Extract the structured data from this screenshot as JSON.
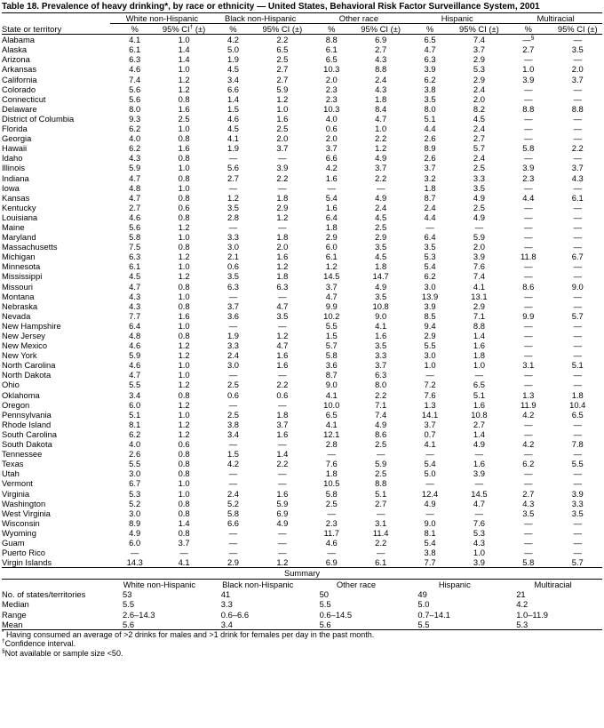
{
  "title": "Table 18. Prevalence of heavy drinking*, by race or ethnicity — United States, Behavioral Risk Factor Surveillance System, 2001",
  "header": {
    "row_label": "State or territory",
    "groups": [
      "White non-Hispanic",
      "Black non-Hispanic",
      "Other race",
      "Hispanic",
      "Multiracial"
    ],
    "sub": [
      "%",
      {
        "text": "95% CI",
        "sup": "†",
        "after": " (±)"
      },
      "%",
      "95% CI (±)",
      "%",
      "95% CI (±)",
      "%",
      "95% CI (±)",
      "%",
      "95% CI (±)"
    ]
  },
  "rows": [
    [
      "Alabama",
      "4.1",
      "1.0",
      "4.2",
      "2.2",
      "8.8",
      "6.9",
      "6.5",
      "7.4",
      {
        "text": "—",
        "sup": "§"
      },
      "—"
    ],
    [
      "Alaska",
      "6.1",
      "1.4",
      "5.0",
      "6.5",
      "6.1",
      "2.7",
      "4.7",
      "3.7",
      "2.7",
      "3.5"
    ],
    [
      "Arizona",
      "6.3",
      "1.4",
      "1.9",
      "2.5",
      "6.5",
      "4.3",
      "6.3",
      "2.9",
      "—",
      "—"
    ],
    [
      "Arkansas",
      "4.6",
      "1.0",
      "4.5",
      "2.7",
      "10.3",
      "8.8",
      "3.9",
      "5.3",
      "1.0",
      "2.0"
    ],
    [
      "California",
      "7.4",
      "1.2",
      "3.4",
      "2.7",
      "2.0",
      "2.4",
      "6.2",
      "2.9",
      "3.9",
      "3.7"
    ],
    [
      "Colorado",
      "5.6",
      "1.2",
      "6.6",
      "5.9",
      "2.3",
      "4.3",
      "3.8",
      "2.4",
      "—",
      "—"
    ],
    [
      "Connecticut",
      "5.6",
      "0.8",
      "1.4",
      "1.2",
      "2.3",
      "1.8",
      "3.5",
      "2.0",
      "—",
      "—"
    ],
    [
      "Delaware",
      "8.0",
      "1.6",
      "1.5",
      "1.0",
      "10.3",
      "8.4",
      "8.0",
      "8.2",
      "8.8",
      "8.8"
    ],
    [
      "District of Columbia",
      "9.3",
      "2.5",
      "4.6",
      "1.6",
      "4.0",
      "4.7",
      "5.1",
      "4.5",
      "—",
      "—"
    ],
    [
      "Florida",
      "6.2",
      "1.0",
      "4.5",
      "2.5",
      "0.6",
      "1.0",
      "4.4",
      "2.4",
      "—",
      "—"
    ],
    [
      "Georgia",
      "4.0",
      "0.8",
      "4.1",
      "2.0",
      "2.0",
      "2.2",
      "2.6",
      "2.7",
      "—",
      "—"
    ],
    [
      "Hawaii",
      "6.2",
      "1.6",
      "1.9",
      "3.7",
      "3.7",
      "1.2",
      "8.9",
      "5.7",
      "5.8",
      "2.2"
    ],
    [
      "Idaho",
      "4.3",
      "0.8",
      "—",
      "—",
      "6.6",
      "4.9",
      "2.6",
      "2.4",
      "—",
      "—"
    ],
    [
      "Illinois",
      "5.9",
      "1.0",
      "5.6",
      "3.9",
      "4.2",
      "3.7",
      "3.7",
      "2.5",
      "3.9",
      "3.7"
    ],
    [
      "Indiana",
      "4.7",
      "0.8",
      "2.7",
      "2.2",
      "1.6",
      "2.2",
      "3.2",
      "3.3",
      "2.3",
      "4.3"
    ],
    [
      "Iowa",
      "4.8",
      "1.0",
      "—",
      "—",
      "—",
      "—",
      "1.8",
      "3.5",
      "—",
      "—"
    ],
    [
      "Kansas",
      "4.7",
      "0.8",
      "1.2",
      "1.8",
      "5.4",
      "4.9",
      "8.7",
      "4.9",
      "4.4",
      "6.1"
    ],
    [
      "Kentucky",
      "2.7",
      "0.6",
      "3.5",
      "2.9",
      "1.6",
      "2.4",
      "2.4",
      "2.5",
      "—",
      "—"
    ],
    [
      "Louisiana",
      "4.6",
      "0.8",
      "2.8",
      "1.2",
      "6.4",
      "4.5",
      "4.4",
      "4.9",
      "—",
      "—"
    ],
    [
      "Maine",
      "5.6",
      "1.2",
      "—",
      "—",
      "1.8",
      "2.5",
      "—",
      "—",
      "—",
      "—"
    ],
    [
      "Maryland",
      "5.8",
      "1.0",
      "3.3",
      "1.8",
      "2.9",
      "2.9",
      "6.4",
      "5.9",
      "—",
      "—"
    ],
    [
      "Massachusetts",
      "7.5",
      "0.8",
      "3.0",
      "2.0",
      "6.0",
      "3.5",
      "3.5",
      "2.0",
      "—",
      "—"
    ],
    [
      "Michigan",
      "6.3",
      "1.2",
      "2.1",
      "1.6",
      "6.1",
      "4.5",
      "5.3",
      "3.9",
      "11.8",
      "6.7"
    ],
    [
      "Minnesota",
      "6.1",
      "1.0",
      "0.6",
      "1.2",
      "1.2",
      "1.8",
      "5.4",
      "7.6",
      "—",
      "—"
    ],
    [
      "Mississippi",
      "4.5",
      "1.2",
      "3.5",
      "1.8",
      "14.5",
      "14.7",
      "6.2",
      "7.4",
      "—",
      "—"
    ],
    [
      "Missouri",
      "4.7",
      "0.8",
      "6.3",
      "6.3",
      "3.7",
      "4.9",
      "3.0",
      "4.1",
      "8.6",
      "9.0"
    ],
    [
      "Montana",
      "4.3",
      "1.0",
      "—",
      "—",
      "4.7",
      "3.5",
      "13.9",
      "13.1",
      "—",
      "—"
    ],
    [
      "Nebraska",
      "4.3",
      "0.8",
      "3.7",
      "4.7",
      "9.9",
      "10.8",
      "3.9",
      "2.9",
      "—",
      "—"
    ],
    [
      "Nevada",
      "7.7",
      "1.6",
      "3.6",
      "3.5",
      "10.2",
      "9.0",
      "8.5",
      "7.1",
      "9.9",
      "5.7"
    ],
    [
      "New Hampshire",
      "6.4",
      "1.0",
      "—",
      "—",
      "5.5",
      "4.1",
      "9.4",
      "8.8",
      "—",
      "—"
    ],
    [
      "New Jersey",
      "4.8",
      "0.8",
      "1.9",
      "1.2",
      "1.5",
      "1.6",
      "2.9",
      "1.4",
      "—",
      "—"
    ],
    [
      "New Mexico",
      "4.6",
      "1.2",
      "3.3",
      "4.7",
      "5.7",
      "3.5",
      "5.5",
      "1.6",
      "—",
      "—"
    ],
    [
      "New York",
      "5.9",
      "1.2",
      "2.4",
      "1.6",
      "5.8",
      "3.3",
      "3.0",
      "1.8",
      "—",
      "—"
    ],
    [
      "North Carolina",
      "4.6",
      "1.0",
      "3.0",
      "1.6",
      "3.6",
      "3.7",
      "1.0",
      "1.0",
      "3.1",
      "5.1"
    ],
    [
      "North Dakota",
      "4.7",
      "1.0",
      "—",
      "—",
      "8.7",
      "6.3",
      "—",
      "—",
      "—",
      "—"
    ],
    [
      "Ohio",
      "5.5",
      "1.2",
      "2.5",
      "2.2",
      "9.0",
      "8.0",
      "7.2",
      "6.5",
      "—",
      "—"
    ],
    [
      "Oklahoma",
      "3.4",
      "0.8",
      "0.6",
      "0.6",
      "4.1",
      "2.2",
      "7.6",
      "5.1",
      "1.3",
      "1.8"
    ],
    [
      "Oregon",
      "6.0",
      "1.2",
      "—",
      "—",
      "10.0",
      "7.1",
      "1.3",
      "1.6",
      "11.9",
      "10.4"
    ],
    [
      "Pennsylvania",
      "5.1",
      "1.0",
      "2.5",
      "1.8",
      "6.5",
      "7.4",
      "14.1",
      "10.8",
      "4.2",
      "6.5"
    ],
    [
      "Rhode Island",
      "8.1",
      "1.2",
      "3.8",
      "3.7",
      "4.1",
      "4.9",
      "3.7",
      "2.7",
      "—",
      "—"
    ],
    [
      "South Carolina",
      "6.2",
      "1.2",
      "3.4",
      "1.6",
      "12.1",
      "8.6",
      "0.7",
      "1.4",
      "—",
      "—"
    ],
    [
      "South Dakota",
      "4.0",
      "0.6",
      "—",
      "—",
      "2.8",
      "2.5",
      "4.1",
      "4.9",
      "4.2",
      "7.8"
    ],
    [
      "Tennessee",
      "2.6",
      "0.8",
      "1.5",
      "1.4",
      "—",
      "—",
      "—",
      "—",
      "—",
      "—"
    ],
    [
      "Texas",
      "5.5",
      "0.8",
      "4.2",
      "2.2",
      "7.6",
      "5.9",
      "5.4",
      "1.6",
      "6.2",
      "5.5"
    ],
    [
      "Utah",
      "3.0",
      "0.8",
      "—",
      "—",
      "1.8",
      "2.5",
      "5.0",
      "3.9",
      "—",
      "—"
    ],
    [
      "Vermont",
      "6.7",
      "1.0",
      "—",
      "—",
      "10.5",
      "8.8",
      "—",
      "—",
      "—",
      "—"
    ],
    [
      "Virginia",
      "5.3",
      "1.0",
      "2.4",
      "1.6",
      "5.8",
      "5.1",
      "12.4",
      "14.5",
      "2.7",
      "3.9"
    ],
    [
      "Washington",
      "5.2",
      "0.8",
      "5.2",
      "5.9",
      "2.5",
      "2.7",
      "4.9",
      "4.7",
      "4.3",
      "3.3"
    ],
    [
      "West Virginia",
      "3.0",
      "0.8",
      "5.8",
      "6.9",
      "—",
      "—",
      "—",
      "—",
      "3.5",
      "3.5"
    ],
    [
      "Wisconsin",
      "8.9",
      "1.4",
      "6.6",
      "4.9",
      "2.3",
      "3.1",
      "9.0",
      "7.6",
      "—",
      "—"
    ],
    [
      "Wyoming",
      "4.9",
      "0.8",
      "—",
      "—",
      "11.7",
      "11.4",
      "8.1",
      "5.3",
      "—",
      "—"
    ],
    [
      "Guam",
      "6.0",
      "3.7",
      "—",
      "—",
      "4.6",
      "2.2",
      "5.4",
      "4.3",
      "—",
      "—"
    ],
    [
      "Puerto Rico",
      "—",
      "—",
      "—",
      "—",
      "—",
      "—",
      "3.8",
      "1.0",
      "—",
      "—"
    ],
    [
      "Virgin Islands",
      "14.3",
      "4.1",
      "2.9",
      "1.2",
      "6.9",
      "6.1",
      "7.7",
      "3.9",
      "5.8",
      "5.7"
    ]
  ],
  "summary": {
    "title": "Summary",
    "groups": [
      "White non-Hispanic",
      "Black non-Hispanic",
      "Other race",
      "Hispanic",
      "Multiracial"
    ],
    "rows": [
      [
        "No. of states/territories",
        "53",
        "41",
        "50",
        "49",
        "21"
      ],
      [
        "Median",
        "5.5",
        "3.3",
        "5.5",
        "5.0",
        "4.2"
      ],
      [
        "Range",
        "2.6–14.3",
        "0.6–6.6",
        "0.6–14.5",
        "0.7–14.1",
        "1.0–11.9"
      ],
      [
        "Mean",
        "5.6",
        "3.4",
        "5.6",
        "5.5",
        "5.3"
      ]
    ]
  },
  "footnotes": [
    {
      "sup": "*",
      "text": " Having consumed an average of >2 drinks for males and >1 drink for females per day in the past month."
    },
    {
      "sup": "†",
      "text": "Confidence interval."
    },
    {
      "sup": "§",
      "text": "Not available or sample size <50."
    }
  ]
}
